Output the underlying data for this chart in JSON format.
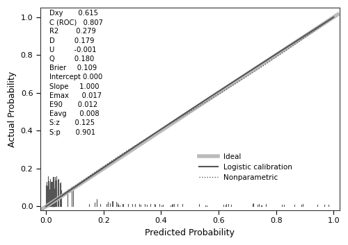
{
  "stats_labels": [
    "Dxy",
    "C (ROC)",
    "R2",
    "D",
    "U",
    "Q",
    "Brier",
    "Intercept",
    "Slope",
    "Emax",
    "E90",
    "Eavg",
    "S:z",
    "S:p"
  ],
  "stats_values": [
    "0.615",
    "0.807",
    "0.279",
    "0.179",
    "-0.001",
    "0.180",
    "0.109",
    "0.000",
    "1.000",
    "0.017",
    "0.012",
    "0.008",
    "0.125",
    "0.901"
  ],
  "xlabel": "Predicted Probability",
  "ylabel": "Actual Probability",
  "xlim": [
    -0.02,
    1.02
  ],
  "ylim": [
    -0.02,
    1.05
  ],
  "xticks": [
    0.0,
    0.2,
    0.4,
    0.6,
    0.8,
    1.0
  ],
  "yticks": [
    0.0,
    0.2,
    0.4,
    0.6,
    0.8,
    1.0
  ],
  "ideal_color": "#bbbbbb",
  "logistic_color": "#555555",
  "nonparametric_color": "#555555",
  "ideal_linewidth": 4.0,
  "logistic_linewidth": 1.5,
  "nonparametric_linewidth": 1.0,
  "spike_color": "#555555",
  "spike_linewidth": 0.8,
  "background_color": "#ffffff",
  "figsize": [
    5.0,
    3.53
  ],
  "dpi": 100
}
